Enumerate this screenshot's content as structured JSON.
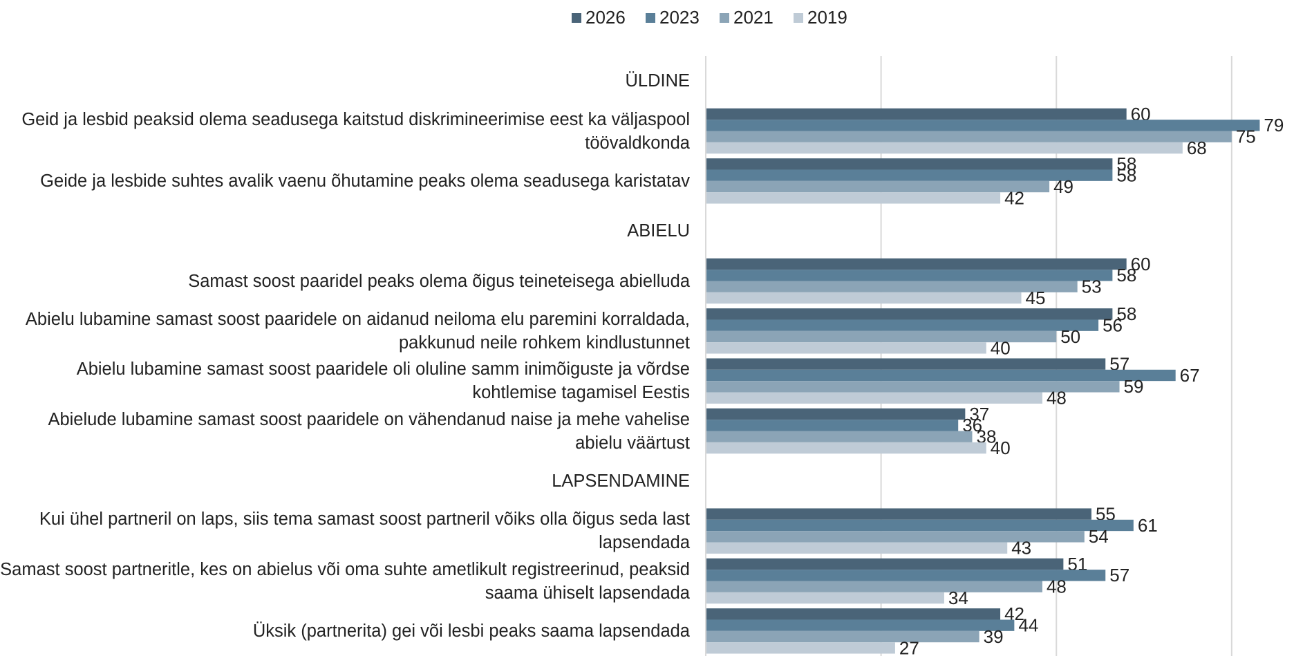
{
  "chart_data": {
    "type": "hbar",
    "categories": [
      "ÜLDINE",
      "Geid ja lesbid peaksid olema seadusega  kaitstud diskrimineerimise eest ka väljaspool töövaldkonda",
      "Geide ja lesbide suhtes avalik vaenu õhutamine peaks olema seadusega karistatav",
      "ABIELU",
      "Samast soost paaridel peaks olema õigus teineteisega abielluda",
      "Abielu lubamine samast soost paaridele on aidanud neiloma elu paremini korraldada, pakkunud neile rohkem kindlustunnet",
      "Abielu lubamine samast soost paaridele oli oluline samm inimõiguste ja võrdse kohtlemise tagamisel Eestis",
      "Abielude lubamine samast soost paaridele on vähendanud naise ja mehe vahelise abielu väärtust",
      "LAPSENDAMINE",
      "Kui ühel partneril on laps, siis tema samast soost partneril võiks olla õigus seda last lapsendada",
      "Samast soost partneritle, kes on abielus või oma suhte ametlikult registreerinud, peaksid saama ühiselt lapsendada",
      "Üksik (partnerita) gei või lesbi peaks saama lapsendada"
    ],
    "series": [
      {
        "name": "2026",
        "color": "#4a6478",
        "values": [
          null,
          60,
          58,
          null,
          60,
          58,
          57,
          37,
          null,
          55,
          51,
          42
        ]
      },
      {
        "name": "2023",
        "color": "#5a7f98",
        "values": [
          null,
          79,
          58,
          null,
          58,
          56,
          67,
          36,
          null,
          61,
          57,
          44
        ]
      },
      {
        "name": "2021",
        "color": "#8ba4b6",
        "values": [
          null,
          75,
          49,
          null,
          53,
          50,
          59,
          38,
          null,
          54,
          48,
          39
        ]
      },
      {
        "name": "2019",
        "color": "#bfcbd6",
        "values": [
          null,
          68,
          42,
          null,
          45,
          40,
          48,
          40,
          null,
          43,
          34,
          27
        ]
      }
    ],
    "xlim": [
      0,
      83
    ],
    "xticks": [
      0,
      25,
      50,
      75
    ],
    "grid": true,
    "legend": "top"
  }
}
